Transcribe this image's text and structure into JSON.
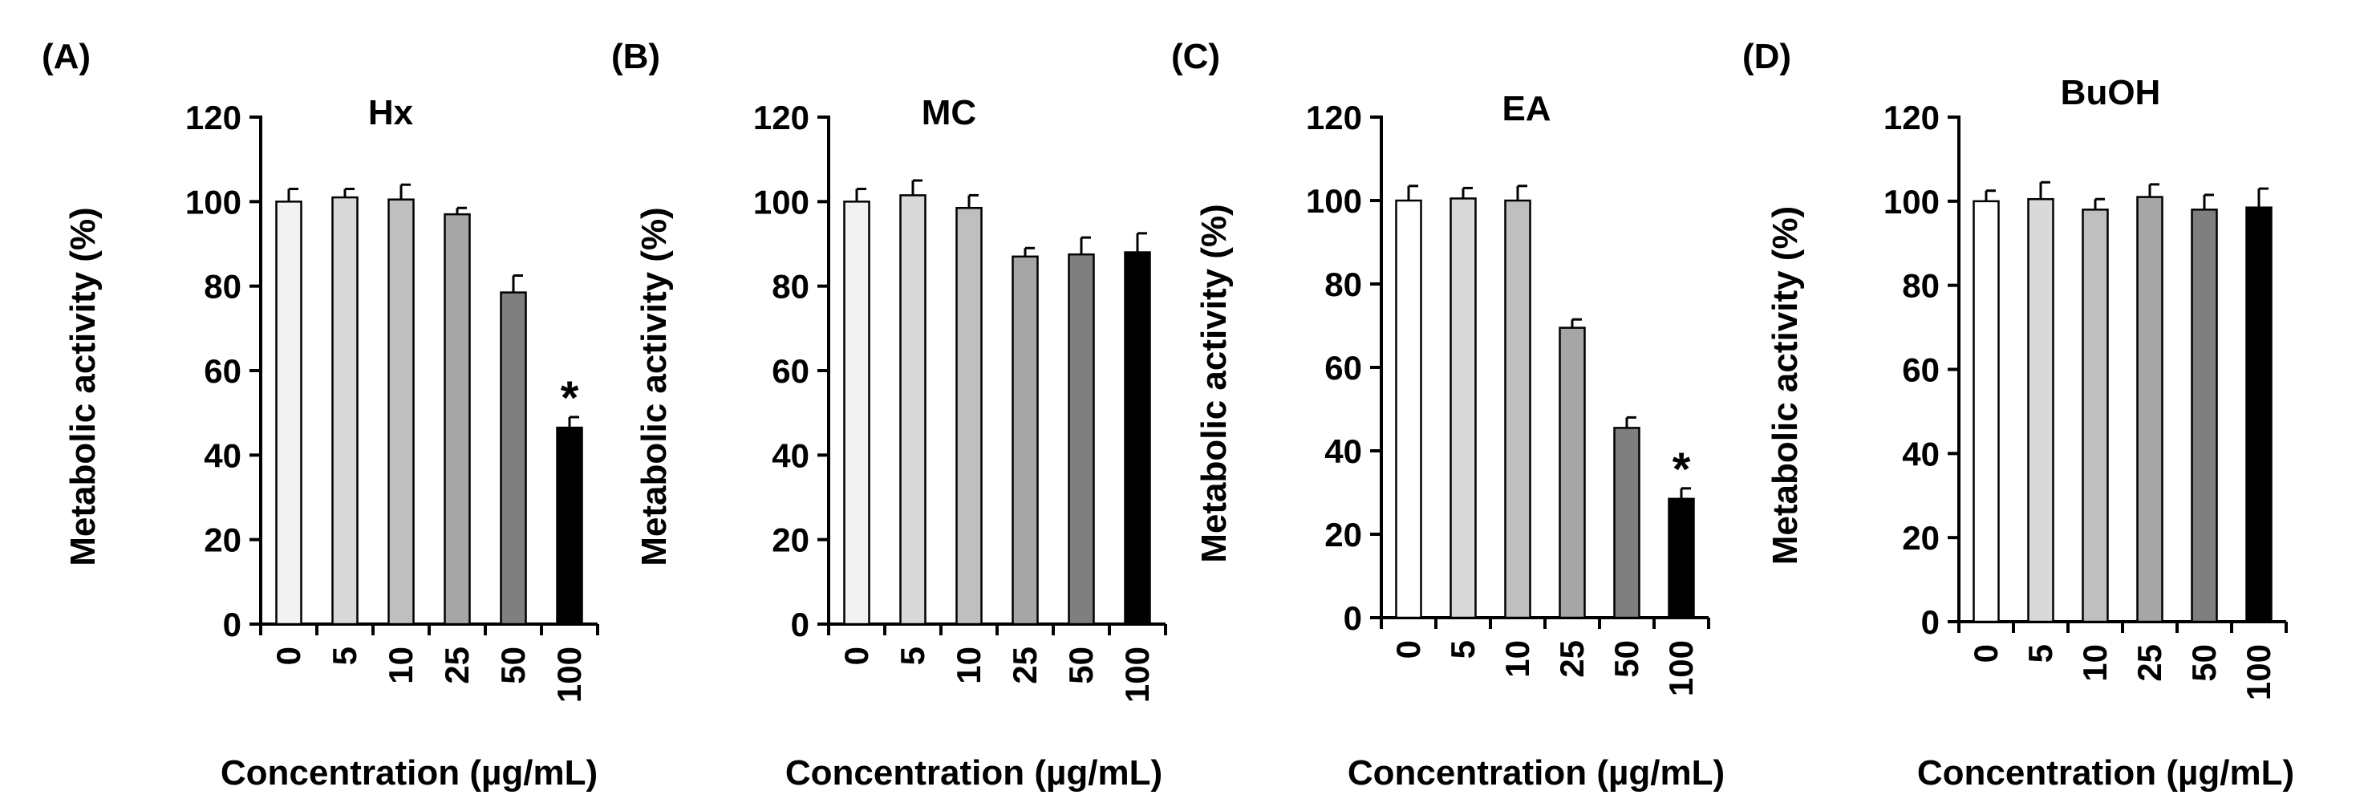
{
  "chart_data": [
    {
      "type": "bar",
      "panel_label": "(A)",
      "title": "Hx",
      "xlabel": "Concentration (µg/mL)",
      "ylabel": "Metabolic activity (%)",
      "ylim": [
        0,
        120
      ],
      "yticks": [
        "0",
        "20",
        "40",
        "60",
        "80",
        "100",
        "120"
      ],
      "categories": [
        "0",
        "5",
        "10",
        "25",
        "50",
        "100"
      ],
      "values": [
        100,
        101,
        100.5,
        97,
        78.5,
        46.5
      ],
      "errors": [
        3,
        2,
        3.5,
        1.5,
        4,
        2.5
      ],
      "colors": [
        "#f2f2f2",
        "#d9d9d9",
        "#bfbfbf",
        "#a6a6a6",
        "#7f7f7f",
        "#000000"
      ],
      "significance": [
        "",
        "",
        "",
        "",
        "",
        "*"
      ]
    },
    {
      "type": "bar",
      "panel_label": "(B)",
      "title": "MC",
      "xlabel": "Concentration (µg/mL)",
      "ylabel": "Metabolic activity (%)",
      "ylim": [
        0,
        120
      ],
      "yticks": [
        "0",
        "20",
        "40",
        "60",
        "80",
        "100",
        "120"
      ],
      "categories": [
        "0",
        "5",
        "10",
        "25",
        "50",
        "100"
      ],
      "values": [
        100,
        101.5,
        98.5,
        87,
        87.5,
        88
      ],
      "errors": [
        3,
        3.5,
        3,
        2,
        4,
        4.5
      ],
      "colors": [
        "#f2f2f2",
        "#d9d9d9",
        "#bfbfbf",
        "#a6a6a6",
        "#7f7f7f",
        "#000000"
      ],
      "significance": [
        "",
        "",
        "",
        "",
        "",
        ""
      ]
    },
    {
      "type": "bar",
      "panel_label": "(C)",
      "title": "EA",
      "xlabel": "Concentration (µg/mL)",
      "ylabel": "Metabolic activity (%)",
      "ylim": [
        0,
        120
      ],
      "yticks": [
        "0",
        "20",
        "40",
        "60",
        "80",
        "100",
        "120"
      ],
      "categories": [
        "0",
        "5",
        "10",
        "25",
        "50",
        "100"
      ],
      "values": [
        100,
        100.5,
        100,
        69.5,
        45.5,
        28.5
      ],
      "errors": [
        3.5,
        2.5,
        3.5,
        2,
        2.5,
        2.5
      ],
      "colors": [
        "#ffffff",
        "#d9d9d9",
        "#bfbfbf",
        "#a6a6a6",
        "#7f7f7f",
        "#000000"
      ],
      "significance": [
        "",
        "",
        "",
        "",
        "",
        "*"
      ]
    },
    {
      "type": "bar",
      "panel_label": "(D)",
      "title": "BuOH",
      "xlabel": "Concentration (µg/mL)",
      "ylabel": "Metabolic activity (%)",
      "ylim": [
        0,
        120
      ],
      "yticks": [
        "0",
        "20",
        "40",
        "60",
        "80",
        "100",
        "120"
      ],
      "categories": [
        "0",
        "5",
        "10",
        "25",
        "50",
        "100"
      ],
      "values": [
        100,
        100.5,
        98,
        101,
        98,
        98.5
      ],
      "errors": [
        2.5,
        4,
        2.5,
        3,
        3.5,
        4.5
      ],
      "colors": [
        "#ffffff",
        "#d9d9d9",
        "#bfbfbf",
        "#a6a6a6",
        "#7f7f7f",
        "#000000"
      ],
      "significance": [
        "",
        "",
        "",
        "",
        "",
        ""
      ]
    }
  ]
}
